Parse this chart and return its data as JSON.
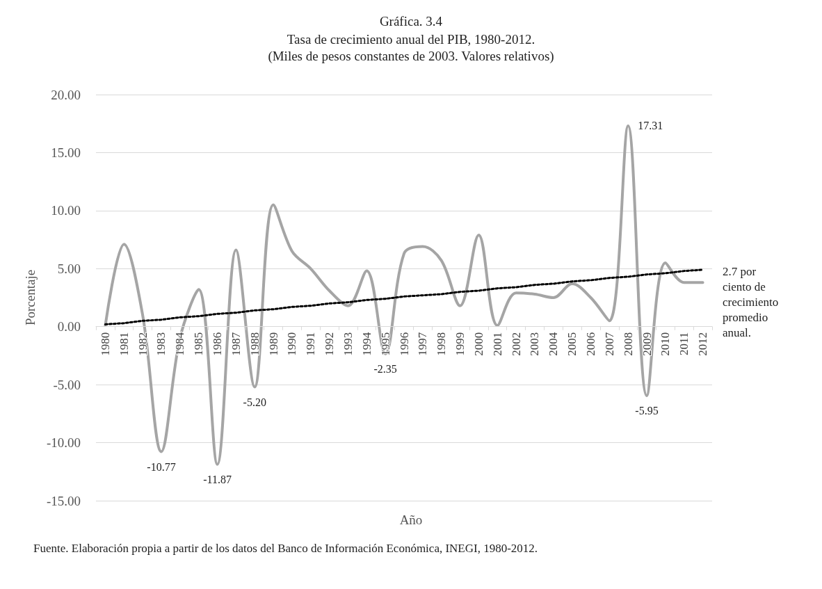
{
  "chart_data": {
    "type": "line",
    "title": "Gráfica. 3.4",
    "subtitle": "Tasa de crecimiento anual del PIB, 1980-2012.\n(Miles de pesos constantes de 2003. Valores relativos)",
    "xlabel": "Año",
    "ylabel": "Porcentaje",
    "categories": [
      "1980",
      "1981",
      "1982",
      "1983",
      "1984",
      "1985",
      "1986",
      "1987",
      "1988",
      "1989",
      "1990",
      "1991",
      "1992",
      "1993",
      "1994",
      "1995",
      "1996",
      "1997",
      "1998",
      "1999",
      "2000",
      "2001",
      "2002",
      "2003",
      "2004",
      "2005",
      "2006",
      "2007",
      "2008",
      "2009",
      "2010",
      "2011",
      "2012"
    ],
    "series": [
      {
        "color": "#a5a5a5",
        "values": [
          0.1,
          7.1,
          1.0,
          -10.77,
          -1.0,
          3.2,
          -11.87,
          6.6,
          -5.2,
          10.5,
          6.5,
          5.0,
          3.1,
          1.8,
          4.8,
          -2.35,
          6.3,
          6.9,
          5.7,
          1.8,
          7.9,
          0.1,
          2.9,
          2.8,
          2.5,
          3.7,
          2.5,
          0.5,
          17.31,
          -5.95,
          5.5,
          3.8,
          3.8
        ],
        "value_labels": [
          null,
          null,
          null,
          "-10.77",
          null,
          null,
          "-11.87",
          null,
          "-5.20",
          null,
          null,
          null,
          null,
          null,
          null,
          "-2.35",
          null,
          null,
          null,
          null,
          null,
          null,
          null,
          null,
          null,
          null,
          null,
          null,
          "17.31",
          "-5.95",
          null,
          null,
          null
        ]
      },
      {
        "type": "line",
        "color": "#000000",
        "line_style": "dotted",
        "values": [
          0.2,
          0.3,
          0.5,
          0.6,
          0.8,
          0.9,
          1.1,
          1.2,
          1.4,
          1.5,
          1.7,
          1.8,
          2.0,
          2.1,
          2.3,
          2.4,
          2.6,
          2.7,
          2.8,
          3.0,
          3.1,
          3.3,
          3.4,
          3.6,
          3.7,
          3.9,
          4.0,
          4.2,
          4.3,
          4.5,
          4.6,
          4.8,
          4.9
        ]
      }
    ],
    "ylim": [
      -15,
      20
    ],
    "yticks": [
      {
        "value": -15,
        "label": "-15.00"
      },
      {
        "value": -10,
        "label": "-10.00"
      },
      {
        "value": -5,
        "label": "-5.00"
      },
      {
        "value": 0,
        "label": "0.00"
      },
      {
        "value": 5,
        "label": "5.00"
      },
      {
        "value": 10,
        "label": "10.00"
      },
      {
        "value": 15,
        "label": "15.00"
      },
      {
        "value": 20,
        "label": "20.00"
      }
    ],
    "grid": "y",
    "marker": "none",
    "line_style": "solid",
    "annotations": [
      {
        "text": "2.7 por ciento de crecimiento promedio anual.",
        "x": "2012",
        "y": 4.9
      },
      "Fuente. Elaboración propia a partir de los datos del Banco de Información Económica, INEGI, 1980-2012."
    ]
  }
}
